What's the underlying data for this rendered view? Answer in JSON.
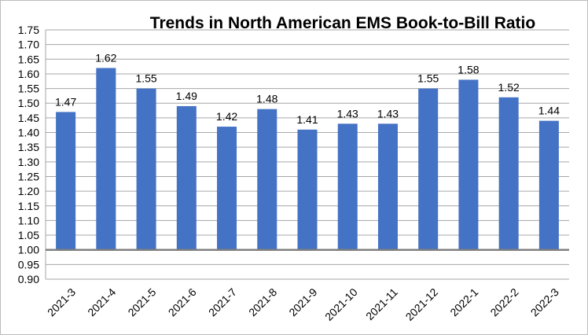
{
  "chart_data": {
    "type": "bar",
    "title": "Trends in North American EMS Book-to-Bill Ratio",
    "xlabel": "",
    "ylabel": "",
    "categories": [
      "2021-3",
      "2021-4",
      "2021-5",
      "2021-6",
      "2021-7",
      "2021-8",
      "2021-9",
      "2021-10",
      "2021-11",
      "2021-12",
      "2022-1",
      "2022-2",
      "2022-3"
    ],
    "values": [
      1.47,
      1.62,
      1.55,
      1.49,
      1.42,
      1.48,
      1.41,
      1.43,
      1.43,
      1.55,
      1.58,
      1.52,
      1.44
    ],
    "data_labels": [
      "1.47",
      "1.62",
      "1.55",
      "1.49",
      "1.42",
      "1.48",
      "1.41",
      "1.43",
      "1.43",
      "1.55",
      "1.58",
      "1.52",
      "1.44"
    ],
    "yticks": [
      "0.90",
      "0.95",
      "1.00",
      "1.05",
      "1.10",
      "1.15",
      "1.20",
      "1.25",
      "1.30",
      "1.35",
      "1.40",
      "1.45",
      "1.50",
      "1.55",
      "1.60",
      "1.65",
      "1.70",
      "1.75"
    ],
    "ylim": [
      0.9,
      1.75
    ],
    "baseline": 1.0,
    "grid": true,
    "legend": "none",
    "colors": {
      "bar": "#4472c4",
      "grid": "#a6a6a6",
      "baseline": "#808080"
    }
  }
}
